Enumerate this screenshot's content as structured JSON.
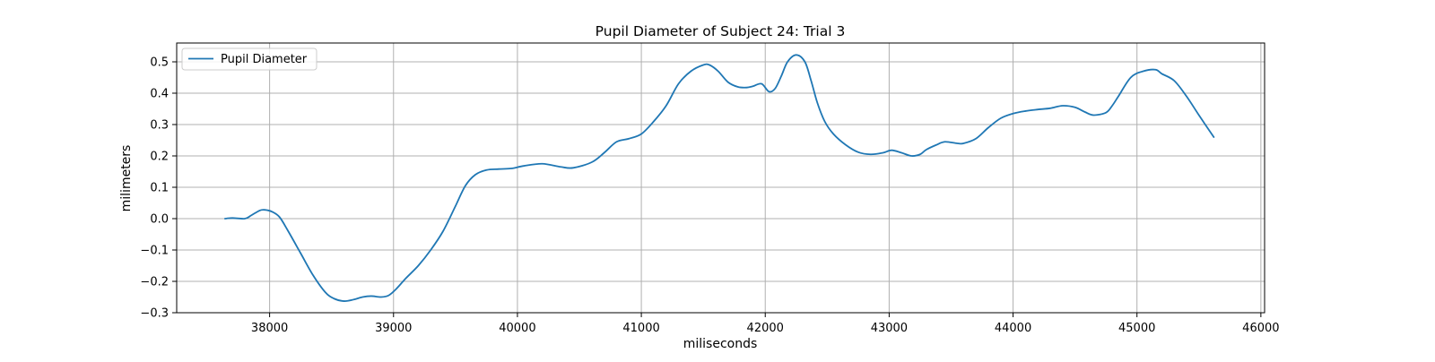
{
  "chart_data": {
    "type": "line",
    "title": "Pupil Diameter of Subject 24: Trial 3",
    "xlabel": "miliseconds",
    "ylabel": "milimeters",
    "xlim": [
      37250,
      46030
    ],
    "ylim": [
      -0.3,
      0.56
    ],
    "xticks": [
      38000,
      39000,
      40000,
      41000,
      42000,
      43000,
      44000,
      45000,
      46000
    ],
    "yticks": [
      -0.3,
      -0.2,
      -0.1,
      0.0,
      0.1,
      0.2,
      0.3,
      0.4,
      0.5
    ],
    "ytick_labels": [
      "−0.3",
      "−0.2",
      "−0.1",
      "0.0",
      "0.1",
      "0.2",
      "0.3",
      "0.4",
      "0.5"
    ],
    "grid": true,
    "legend_position": "upper left",
    "series": [
      {
        "name": "Pupil Diameter",
        "color": "#1f77b4",
        "x": [
          37640,
          37700,
          37800,
          37850,
          37920,
          37960,
          38020,
          38080,
          38150,
          38250,
          38350,
          38450,
          38520,
          38600,
          38680,
          38750,
          38820,
          38900,
          38960,
          39020,
          39100,
          39200,
          39300,
          39400,
          39500,
          39580,
          39660,
          39750,
          39850,
          39950,
          40050,
          40200,
          40350,
          40450,
          40600,
          40700,
          40800,
          40900,
          41000,
          41100,
          41200,
          41300,
          41400,
          41500,
          41550,
          41620,
          41700,
          41780,
          41850,
          41900,
          41970,
          42030,
          42080,
          42130,
          42180,
          42250,
          42320,
          42370,
          42420,
          42480,
          42550,
          42650,
          42750,
          42850,
          42950,
          43020,
          43100,
          43180,
          43250,
          43300,
          43380,
          43450,
          43550,
          43600,
          43700,
          43800,
          43900,
          44000,
          44100,
          44200,
          44300,
          44400,
          44500,
          44580,
          44650,
          44750,
          44800,
          44850,
          44950,
          45050,
          45150,
          45200,
          45300,
          45400,
          45500,
          45620
        ],
        "values": [
          0.0,
          0.002,
          0.0,
          0.01,
          0.026,
          0.028,
          0.022,
          0.005,
          -0.04,
          -0.11,
          -0.18,
          -0.235,
          -0.255,
          -0.263,
          -0.258,
          -0.25,
          -0.247,
          -0.25,
          -0.245,
          -0.225,
          -0.19,
          -0.15,
          -0.1,
          -0.04,
          0.04,
          0.105,
          0.14,
          0.155,
          0.158,
          0.16,
          0.168,
          0.175,
          0.165,
          0.162,
          0.18,
          0.21,
          0.245,
          0.255,
          0.27,
          0.31,
          0.36,
          0.43,
          0.47,
          0.49,
          0.49,
          0.47,
          0.435,
          0.42,
          0.418,
          0.422,
          0.43,
          0.405,
          0.415,
          0.455,
          0.5,
          0.522,
          0.5,
          0.44,
          0.37,
          0.31,
          0.27,
          0.235,
          0.212,
          0.205,
          0.21,
          0.218,
          0.21,
          0.2,
          0.205,
          0.22,
          0.235,
          0.245,
          0.24,
          0.24,
          0.255,
          0.29,
          0.32,
          0.335,
          0.343,
          0.348,
          0.352,
          0.36,
          0.355,
          0.34,
          0.33,
          0.338,
          0.36,
          0.39,
          0.45,
          0.47,
          0.475,
          0.462,
          0.44,
          0.39,
          0.33,
          0.26
        ]
      }
    ]
  }
}
